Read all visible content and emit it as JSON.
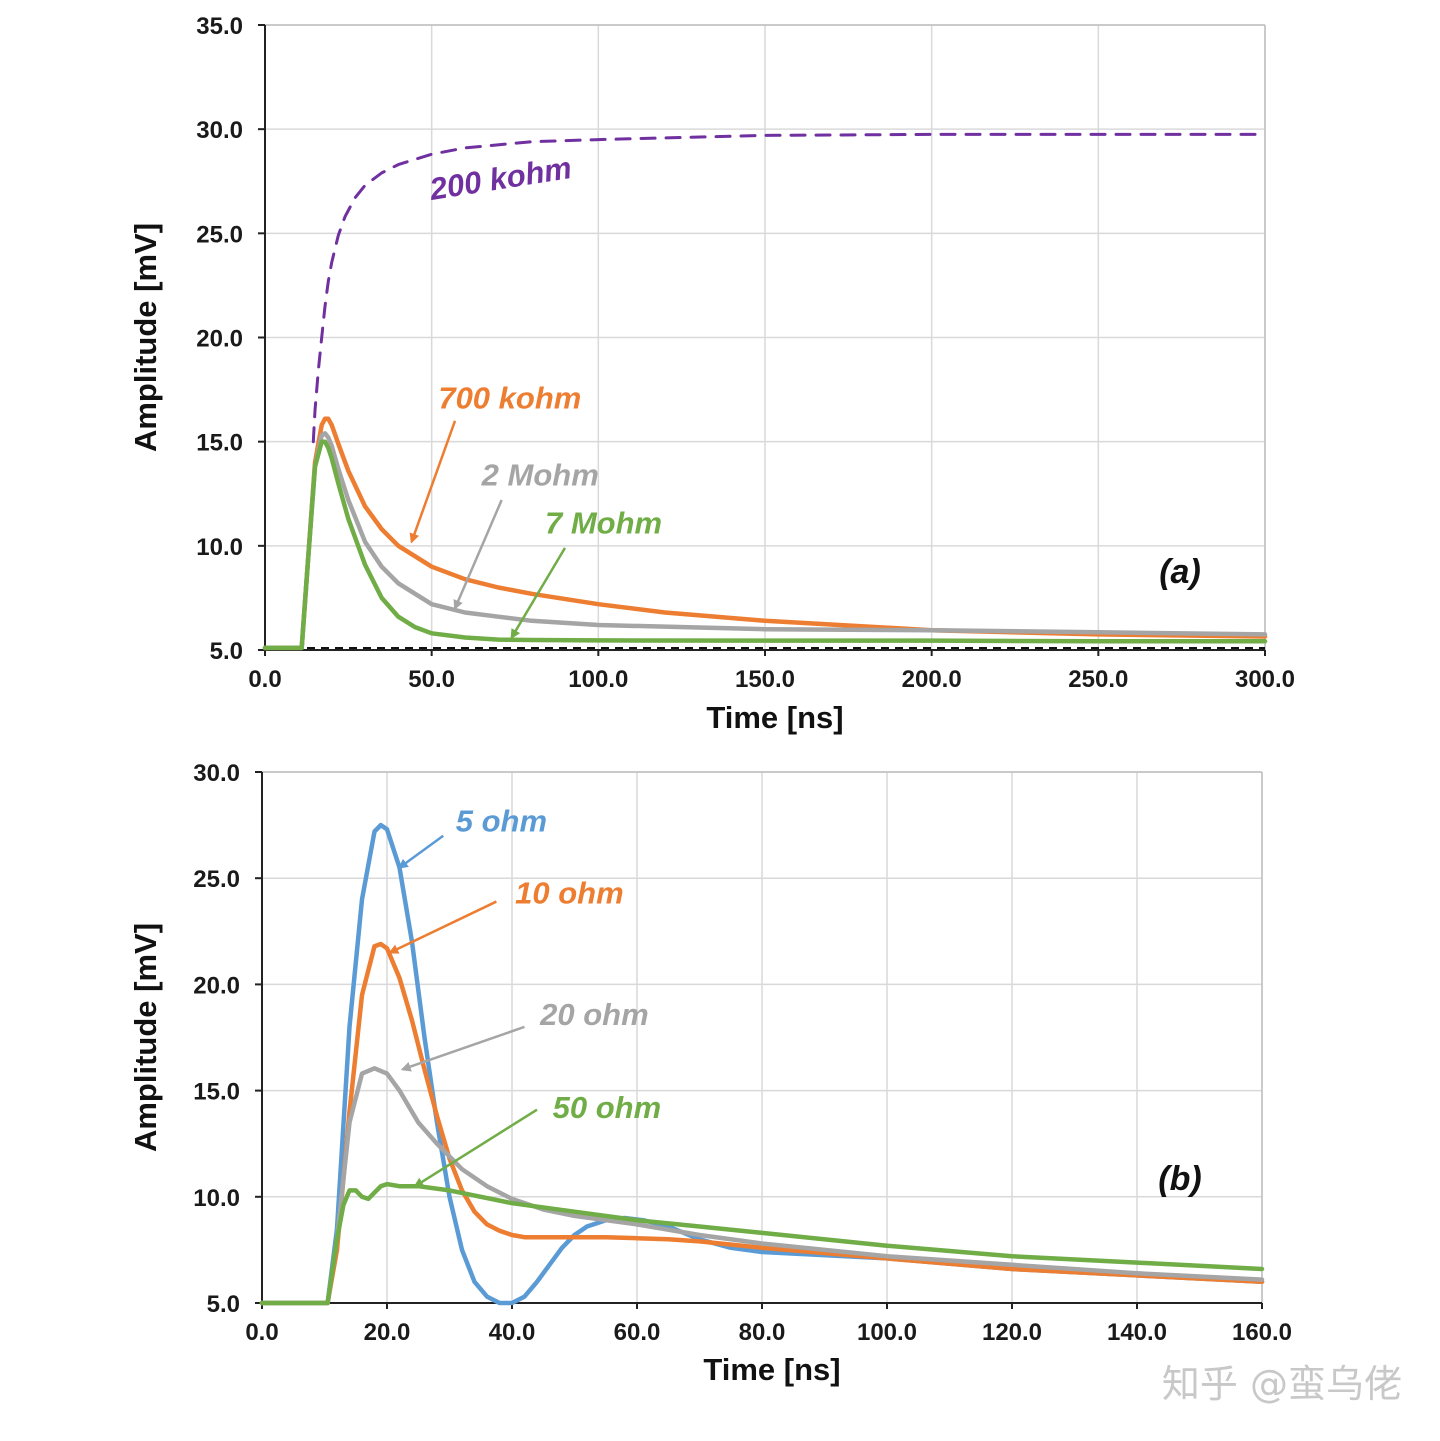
{
  "chart_data": [
    {
      "panel": "(a)",
      "type": "line",
      "xlabel": "Time [ns]",
      "ylabel": "Amplitude [mV]",
      "xlim": [
        0,
        300
      ],
      "ylim": [
        5,
        35
      ],
      "xticks": [
        "0.0",
        "50.0",
        "100.0",
        "150.0",
        "200.0",
        "250.0",
        "300.0"
      ],
      "yticks": [
        "5.0",
        "10.0",
        "15.0",
        "20.0",
        "25.0",
        "30.0",
        "35.0"
      ],
      "grid": true,
      "baseline": 5,
      "series": [
        {
          "name": "200 kohm",
          "color": "#7030a0",
          "dashed": true,
          "x": [
            14.5,
            15,
            16,
            17,
            18,
            19,
            20,
            22,
            24,
            27,
            30,
            35,
            40,
            50,
            60,
            80,
            100,
            150,
            200,
            250,
            300
          ],
          "y": [
            15.0,
            16.5,
            18.4,
            20.0,
            21.5,
            22.7,
            23.6,
            24.9,
            25.8,
            26.7,
            27.3,
            27.9,
            28.3,
            28.8,
            29.1,
            29.4,
            29.5,
            29.7,
            29.75,
            29.75,
            29.75
          ],
          "label_at": [
            50,
            26.6
          ],
          "arrow": null
        },
        {
          "name": "700 kohm",
          "color": "#ed7d31",
          "dashed": false,
          "x": [
            0,
            11,
            13,
            15,
            17,
            18,
            19,
            20,
            22,
            25,
            30,
            35,
            40,
            50,
            60,
            70,
            80,
            100,
            120,
            150,
            200,
            250,
            300
          ],
          "y": [
            5.1,
            5.1,
            9.5,
            14.0,
            15.8,
            16.1,
            16.1,
            15.8,
            14.9,
            13.6,
            11.9,
            10.8,
            10.0,
            9.0,
            8.4,
            8.0,
            7.7,
            7.2,
            6.8,
            6.4,
            5.95,
            5.75,
            5.65
          ],
          "label_at": [
            52,
            16.6
          ],
          "arrow": [
            [
              57,
              16.0
            ],
            [
              44,
              10.2
            ]
          ]
        },
        {
          "name": "2 Mohm",
          "color": "#a5a5a5",
          "dashed": false,
          "x": [
            0,
            11,
            13,
            15,
            17,
            18,
            19,
            20,
            22,
            25,
            30,
            35,
            40,
            50,
            60,
            70,
            80,
            100,
            150,
            200,
            250,
            300
          ],
          "y": [
            5.1,
            5.1,
            9.5,
            13.8,
            15.3,
            15.4,
            15.2,
            14.8,
            13.7,
            12.2,
            10.2,
            9.0,
            8.2,
            7.2,
            6.8,
            6.6,
            6.4,
            6.2,
            6.0,
            5.95,
            5.85,
            5.75
          ],
          "label_at": [
            65,
            12.9
          ],
          "arrow": [
            [
              71,
              12.2
            ],
            [
              57,
              7.0
            ]
          ]
        },
        {
          "name": "7 Mohm",
          "color": "#70ad47",
          "dashed": false,
          "x": [
            0,
            11,
            13,
            15,
            17,
            18,
            19,
            20,
            22,
            25,
            30,
            35,
            40,
            45,
            50,
            60,
            70,
            80,
            100,
            150,
            200,
            250,
            300
          ],
          "y": [
            5.1,
            5.1,
            9.5,
            13.8,
            15.0,
            15.0,
            14.7,
            14.2,
            13.0,
            11.3,
            9.1,
            7.5,
            6.6,
            6.1,
            5.8,
            5.6,
            5.5,
            5.48,
            5.46,
            5.45,
            5.45,
            5.42,
            5.42
          ],
          "label_at": [
            84,
            10.6
          ],
          "arrow": [
            [
              90,
              9.9
            ],
            [
              74,
              5.6
            ]
          ]
        }
      ]
    },
    {
      "panel": "(b)",
      "type": "line",
      "xlabel": "Time [ns]",
      "ylabel": "Amplitude [mV]",
      "xlim": [
        0,
        160
      ],
      "ylim": [
        5,
        30
      ],
      "xticks": [
        "0.0",
        "20.0",
        "40.0",
        "60.0",
        "80.0",
        "100.0",
        "120.0",
        "140.0",
        "160.0"
      ],
      "yticks": [
        "5.0",
        "10.0",
        "15.0",
        "20.0",
        "25.0",
        "30.0"
      ],
      "grid": true,
      "series": [
        {
          "name": "5 ohm",
          "color": "#5b9bd5",
          "x": [
            0,
            10.5,
            12,
            14,
            16,
            18,
            19,
            20,
            22,
            24,
            26,
            28,
            30,
            32,
            34,
            36,
            38,
            40,
            42,
            44,
            46,
            48,
            50,
            52,
            55,
            58,
            61,
            65,
            70,
            75,
            80,
            100,
            120,
            140,
            160
          ],
          "y": [
            5.0,
            5.0,
            8.5,
            18.0,
            24.0,
            27.2,
            27.5,
            27.3,
            25.5,
            22.0,
            17.5,
            13.5,
            10.0,
            7.5,
            6.0,
            5.3,
            5.0,
            5.0,
            5.3,
            6.0,
            6.8,
            7.6,
            8.2,
            8.6,
            8.9,
            9.0,
            8.9,
            8.6,
            8.0,
            7.6,
            7.4,
            7.1,
            6.6,
            6.3,
            6.0
          ],
          "label_at": [
            31,
            27.2
          ],
          "arrow": [
            [
              29,
              27.0
            ],
            [
              22,
              25.5
            ]
          ]
        },
        {
          "name": "10 ohm",
          "color": "#ed7d31",
          "x": [
            0,
            10.5,
            12,
            14,
            16,
            18,
            19,
            20,
            22,
            24,
            26,
            28,
            30,
            32,
            34,
            36,
            38,
            40,
            42,
            45,
            50,
            55,
            60,
            65,
            70,
            80,
            100,
            120,
            140,
            160
          ],
          "y": [
            5.0,
            5.0,
            7.5,
            14.0,
            19.5,
            21.8,
            21.9,
            21.7,
            20.3,
            18.3,
            16.0,
            13.8,
            11.8,
            10.3,
            9.3,
            8.7,
            8.4,
            8.2,
            8.1,
            8.1,
            8.1,
            8.1,
            8.05,
            8.0,
            7.9,
            7.6,
            7.1,
            6.6,
            6.3,
            6.0
          ],
          "label_at": [
            40.5,
            23.8
          ],
          "arrow": [
            [
              37.5,
              23.9
            ],
            [
              20.5,
              21.5
            ]
          ]
        },
        {
          "name": "20 ohm",
          "color": "#a5a5a5",
          "x": [
            0,
            10.5,
            12,
            14,
            16,
            18,
            20,
            22,
            25,
            28,
            32,
            36,
            40,
            45,
            50,
            55,
            60,
            70,
            80,
            100,
            120,
            140,
            160
          ],
          "y": [
            5.0,
            5.0,
            8.0,
            13.5,
            15.8,
            16.05,
            15.8,
            15.0,
            13.5,
            12.5,
            11.3,
            10.5,
            9.9,
            9.4,
            9.1,
            8.9,
            8.7,
            8.2,
            7.8,
            7.2,
            6.8,
            6.4,
            6.1
          ],
          "label_at": [
            44.5,
            18.1
          ],
          "arrow": [
            [
              42,
              18.0
            ],
            [
              22.5,
              16.0
            ]
          ]
        },
        {
          "name": "50 ohm",
          "color": "#70ad47",
          "x": [
            0,
            10.5,
            12,
            13,
            14,
            15,
            16,
            17,
            18,
            19,
            20,
            22,
            25,
            30,
            40,
            50,
            60,
            70,
            80,
            100,
            120,
            140,
            160
          ],
          "y": [
            5.0,
            5.0,
            8.0,
            9.6,
            10.3,
            10.3,
            10.0,
            9.9,
            10.2,
            10.5,
            10.6,
            10.5,
            10.5,
            10.3,
            9.7,
            9.3,
            8.9,
            8.6,
            8.3,
            7.7,
            7.2,
            6.9,
            6.6
          ],
          "label_at": [
            46.5,
            13.7
          ],
          "arrow": [
            [
              44,
              14.1
            ],
            [
              24.5,
              10.5
            ]
          ]
        }
      ]
    }
  ],
  "watermark": "知乎 @蛮乌佬"
}
